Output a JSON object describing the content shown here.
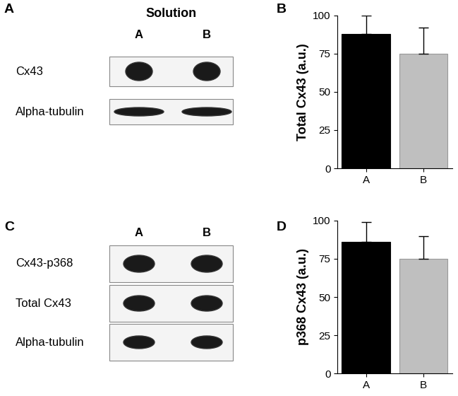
{
  "panel_labels": [
    "A",
    "B",
    "C",
    "D"
  ],
  "blots": [
    {
      "header": "Solution",
      "lanes": [
        "A",
        "B"
      ],
      "rows": [
        "Cx43",
        "Alpha-tubulin"
      ]
    },
    {
      "lanes": [
        "A",
        "B"
      ],
      "rows": [
        "Cx43-p368",
        "Total Cx43",
        "Alpha-tubulin"
      ]
    }
  ],
  "chart_data": [
    {
      "type": "bar",
      "y_label": "Total Cx43 (a.u.)",
      "categories": [
        "A",
        "B"
      ],
      "values": [
        88,
        75
      ],
      "errors": [
        12,
        17
      ],
      "colors": [
        "#000000",
        "#bfbfbf"
      ],
      "ylim": [
        0,
        100
      ],
      "yticks": [
        0,
        25,
        50,
        75,
        100
      ]
    },
    {
      "type": "bar",
      "y_label": "p368 Cx43 (a.u.)",
      "categories": [
        "A",
        "B"
      ],
      "values": [
        86,
        75
      ],
      "errors": [
        13,
        15
      ],
      "colors": [
        "#000000",
        "#bfbfbf"
      ],
      "ylim": [
        0,
        100
      ],
      "yticks": [
        0,
        25,
        50,
        75,
        100
      ]
    }
  ]
}
